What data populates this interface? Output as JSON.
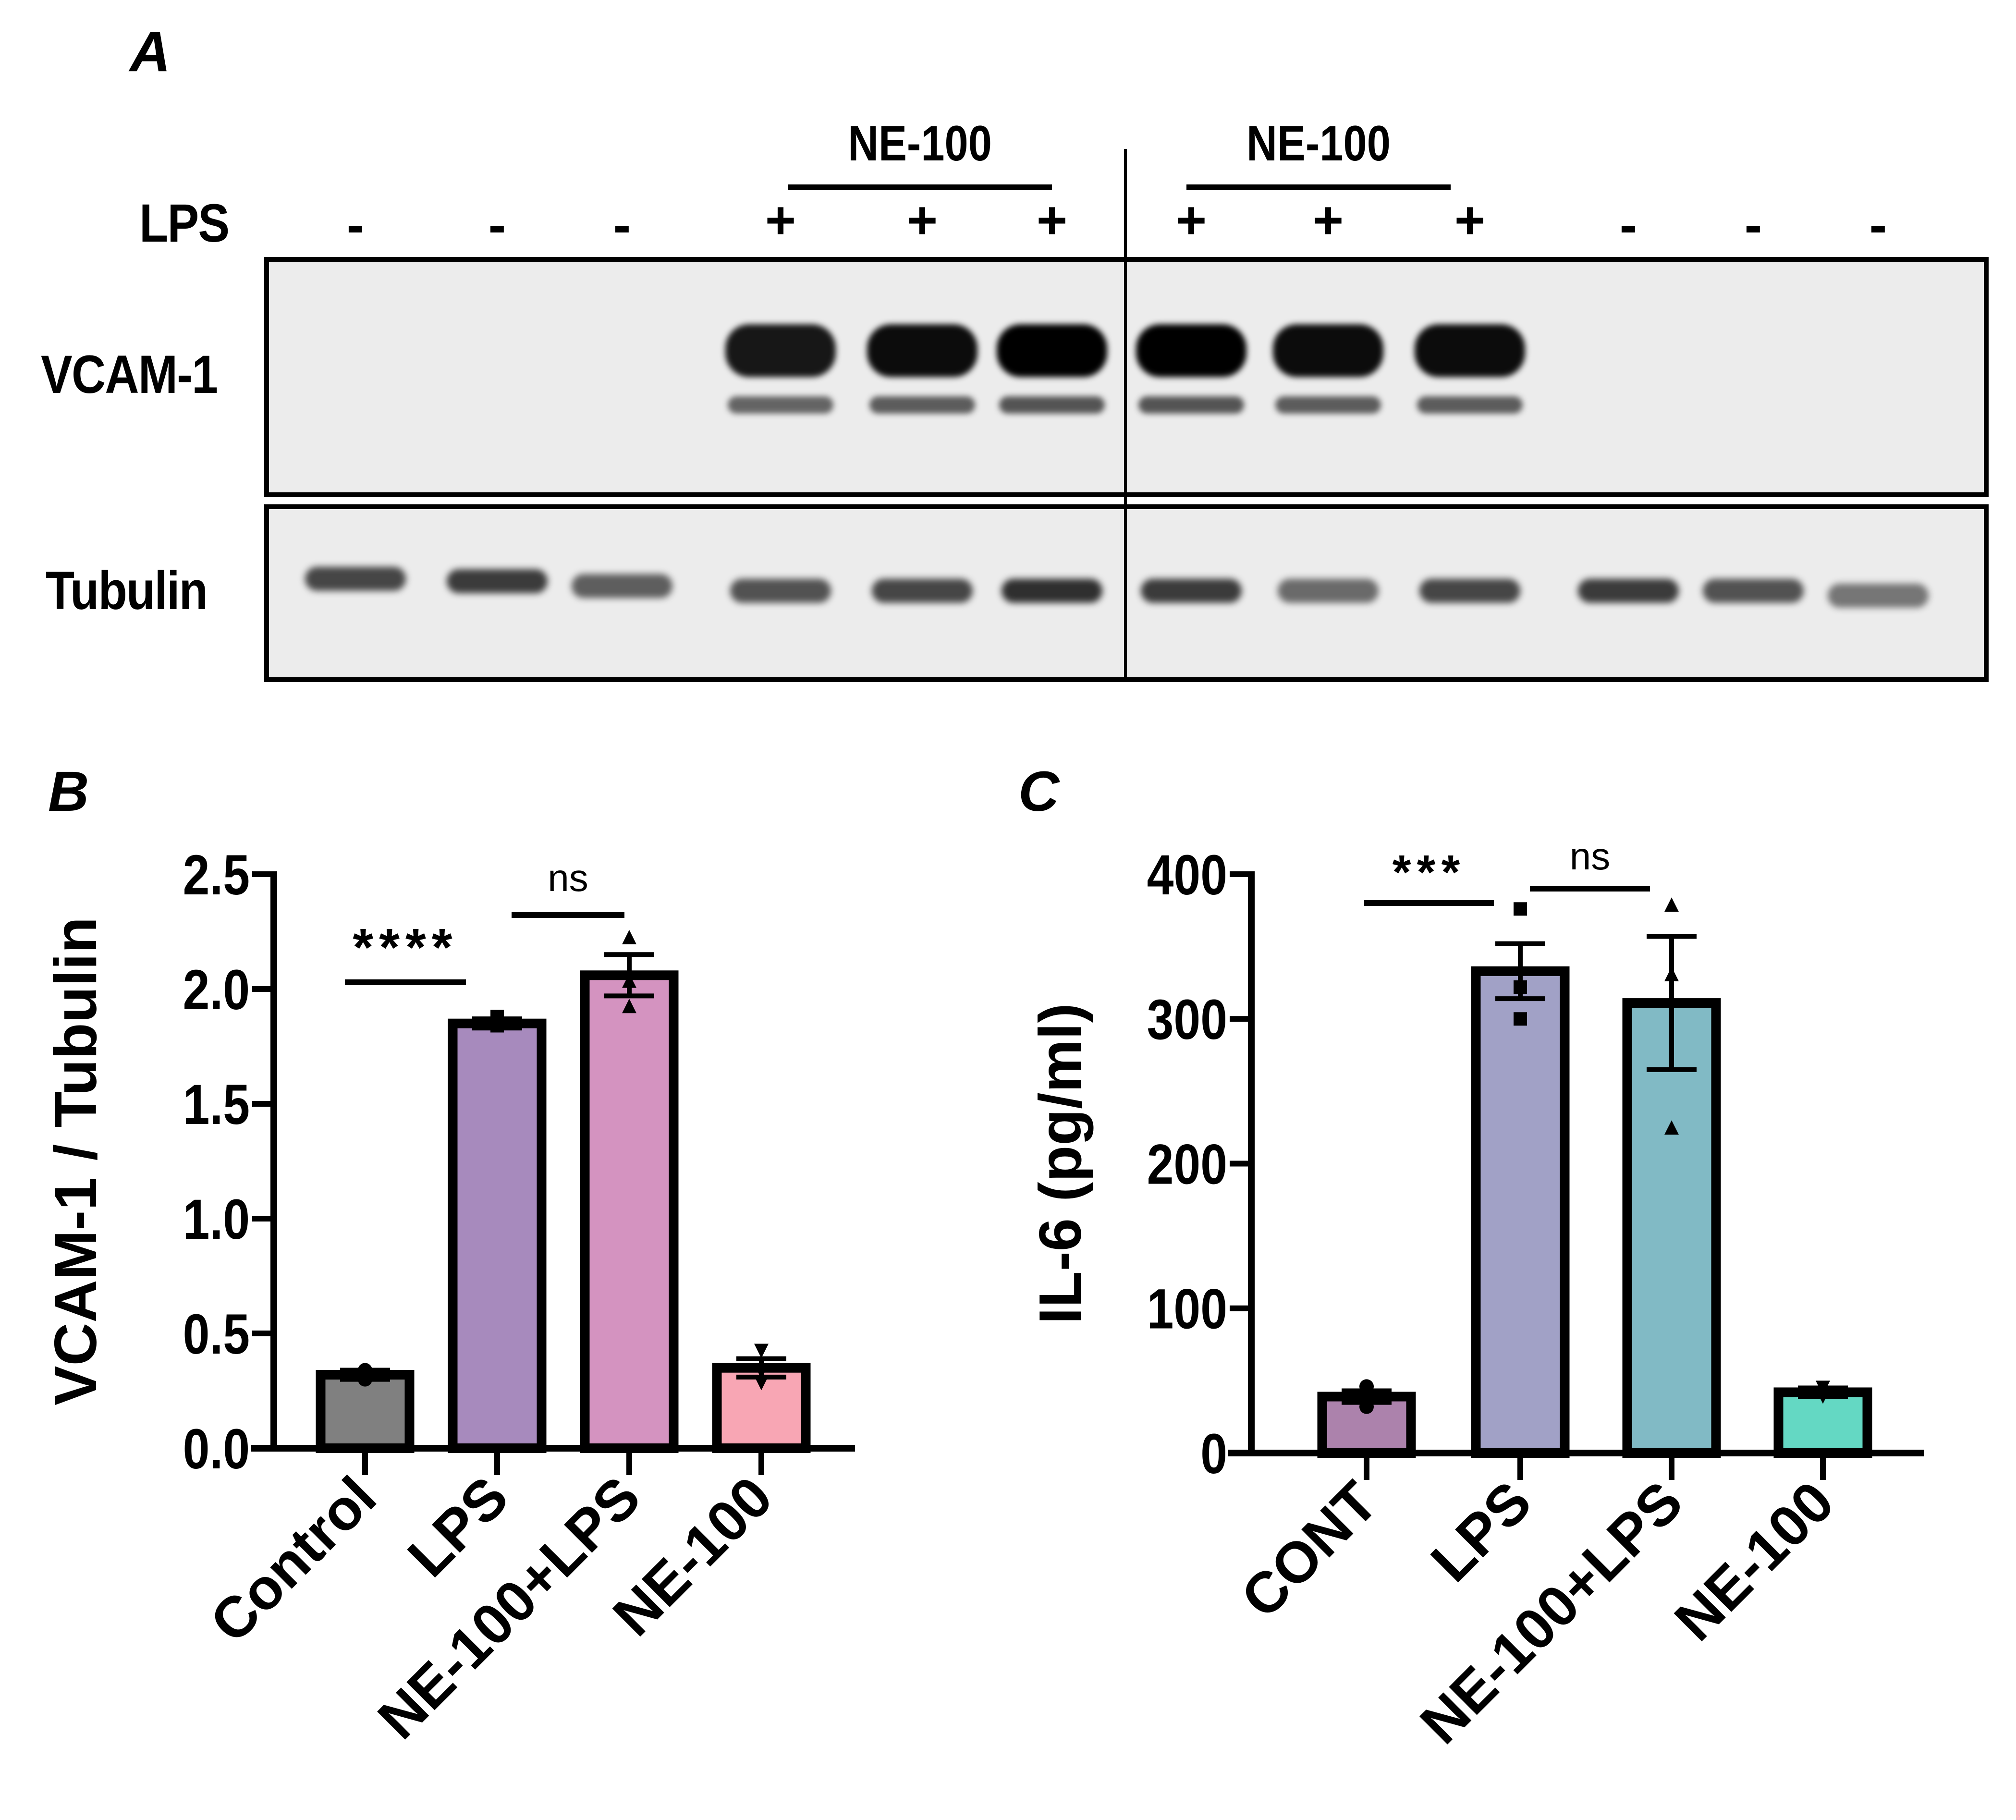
{
  "panels": {
    "a": {
      "letter": "A",
      "lps_label": "LPS",
      "group_labels": [
        "NE-100",
        "NE-100"
      ],
      "lanes": [
        "-",
        "-",
        "-",
        "+",
        "+",
        "+",
        "+",
        "+",
        "+",
        "-",
        "-",
        "-"
      ],
      "blots": [
        {
          "label": "VCAM-1",
          "band_intensity": [
            0,
            0,
            0,
            0.9,
            0.95,
            1.0,
            1.0,
            0.95,
            0.95,
            0,
            0,
            0
          ]
        },
        {
          "label": "Tubulin",
          "band_intensity": [
            0.7,
            0.75,
            0.6,
            0.65,
            0.7,
            0.8,
            0.75,
            0.55,
            0.7,
            0.75,
            0.65,
            0.5
          ]
        }
      ]
    },
    "b": {
      "letter": "B"
    },
    "c": {
      "letter": "C"
    }
  },
  "chart_data": [
    {
      "panel": "B",
      "type": "bar",
      "title": "",
      "xlabel": "",
      "ylabel": "VCAM-1 / Tubulin",
      "ylim": [
        0,
        2.5
      ],
      "yticks": [
        "0.0",
        "0.5",
        "1.0",
        "1.5",
        "2.0",
        "2.5"
      ],
      "grid": false,
      "legend": "none",
      "categories": [
        "Control",
        "LPS",
        "NE-100+LPS",
        "NE-100"
      ],
      "values": [
        0.32,
        1.85,
        2.06,
        0.35
      ],
      "sem": [
        0.02,
        0.02,
        0.09,
        0.04
      ],
      "colors": [
        "#808080",
        "#a78abd",
        "#d493c0",
        "#f8a6b4"
      ],
      "points": [
        [
          0.3,
          0.34,
          0.33
        ],
        [
          1.84,
          1.85,
          1.88
        ],
        [
          1.92,
          2.03,
          2.22
        ],
        [
          0.29,
          0.34,
          0.43
        ]
      ],
      "point_markers": [
        "circle",
        "square",
        "triangle",
        "triangle-down"
      ],
      "annotations": [
        {
          "text": "****",
          "from": 0,
          "to": 1
        },
        {
          "text": "ns",
          "from": 1,
          "to": 2
        }
      ]
    },
    {
      "panel": "C",
      "type": "bar",
      "title": "",
      "xlabel": "",
      "ylabel": "IL-6 (pg/ml)",
      "ylim": [
        0,
        400
      ],
      "yticks": [
        "0",
        "100",
        "200",
        "300",
        "400"
      ],
      "grid": false,
      "legend": "none",
      "categories": [
        "CONT",
        "LPS",
        "NE-100+LPS",
        "NE-100"
      ],
      "values": [
        39,
        333,
        311,
        42
      ],
      "sem": [
        4,
        19,
        46,
        3
      ],
      "colors": [
        "#ac82ac",
        "#a1a1c6",
        "#81bac5",
        "#64d8c3"
      ],
      "points": [
        [
          32,
          40,
          46
        ],
        [
          300,
          322,
          376
        ],
        [
          224,
          330,
          378
        ],
        [
          40,
          42,
          46
        ]
      ],
      "point_markers": [
        "circle",
        "square",
        "triangle",
        "triangle-down"
      ],
      "annotations": [
        {
          "text": "***",
          "from": 0,
          "to": 1
        },
        {
          "text": "ns",
          "from": 1,
          "to": 2
        }
      ]
    }
  ]
}
